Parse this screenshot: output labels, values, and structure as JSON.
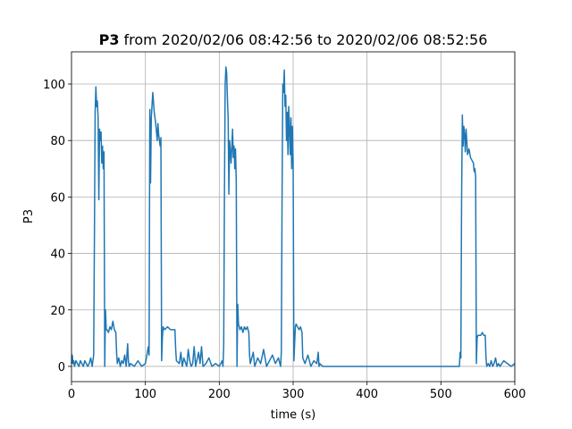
{
  "chart_data": {
    "type": "line",
    "title_parts": [
      "P3",
      "from 2020/02/06 08:42:56 to 2020/02/06 08:52:56"
    ],
    "xlabel": "time (s)",
    "ylabel": "P3",
    "xlim": [
      0,
      600
    ],
    "ylim": [
      -5.4,
      111.4
    ],
    "xticks": [
      0,
      100,
      200,
      300,
      400,
      500,
      600
    ],
    "yticks": [
      0,
      20,
      40,
      60,
      80,
      100
    ],
    "grid": true,
    "x": [
      0,
      1,
      2,
      3,
      4,
      6,
      8,
      10,
      12,
      14,
      16,
      18,
      20,
      22,
      24,
      26,
      28,
      30,
      31,
      32,
      33,
      34,
      35,
      36,
      37,
      38,
      39,
      40,
      41,
      42,
      43,
      44,
      45,
      46,
      47,
      48,
      50,
      52,
      54,
      56,
      58,
      60,
      61,
      62,
      64,
      66,
      68,
      70,
      72,
      74,
      76,
      77,
      78,
      80,
      85,
      90,
      95,
      100,
      104,
      105,
      106,
      107,
      108,
      110,
      112,
      114,
      116,
      117,
      118,
      120,
      121,
      122,
      123,
      124,
      126,
      130,
      134,
      138,
      140,
      141,
      142,
      146,
      148,
      150,
      152,
      156,
      158,
      160,
      162,
      164,
      166,
      168,
      172,
      174,
      176,
      178,
      182,
      186,
      190,
      195,
      200,
      204,
      205,
      206,
      207,
      208,
      209,
      210,
      211,
      212,
      213,
      214,
      216,
      218,
      219,
      220,
      221,
      222,
      223,
      224,
      225,
      226,
      228,
      230,
      232,
      234,
      236,
      238,
      240,
      241,
      242,
      246,
      248,
      252,
      256,
      260,
      264,
      268,
      272,
      276,
      280,
      283,
      284,
      285,
      286,
      287,
      288,
      289,
      290,
      291,
      292,
      293,
      294,
      295,
      296,
      297,
      298,
      299,
      300,
      301,
      302,
      303,
      304,
      306,
      308,
      310,
      312,
      313,
      316,
      320,
      324,
      328,
      332,
      334,
      335,
      336,
      340,
      400,
      500,
      524,
      525,
      526,
      527,
      528,
      529,
      530,
      531,
      532,
      533,
      534,
      535,
      536,
      538,
      540,
      542,
      544,
      545,
      546,
      547,
      548,
      549,
      550,
      552,
      554,
      556,
      558,
      560,
      561,
      562,
      564,
      566,
      568,
      570,
      572,
      574,
      576,
      578,
      580,
      585,
      590,
      595,
      600
    ],
    "series": [
      {
        "name": "P3",
        "color": "#1f77b4",
        "values": [
          1,
          4,
          1,
          2,
          0,
          2,
          1,
          0,
          2,
          1,
          0,
          2,
          1,
          0,
          1,
          3,
          0,
          4,
          45,
          90,
          99,
          92,
          94,
          88,
          59,
          84,
          80,
          83,
          72,
          78,
          70,
          76,
          0,
          20,
          13,
          13,
          12,
          14,
          13,
          16,
          13,
          12,
          5,
          1,
          3,
          0,
          2,
          1,
          4,
          0,
          8,
          2,
          0,
          1,
          0,
          2,
          0,
          1,
          7,
          4,
          91,
          65,
          88,
          97,
          90,
          86,
          80,
          86,
          82,
          78,
          81,
          2,
          10,
          14,
          13,
          14,
          13,
          13,
          13,
          6,
          2,
          1,
          5,
          0,
          3,
          0,
          6,
          2,
          0,
          1,
          7,
          0,
          5,
          1,
          7,
          0,
          1,
          3,
          0,
          1,
          0,
          2,
          0,
          7,
          60,
          100,
          106,
          104,
          95,
          88,
          61,
          80,
          72,
          84,
          74,
          78,
          70,
          77,
          65,
          0,
          22,
          15,
          13,
          14,
          12,
          14,
          13,
          14,
          12,
          4,
          1,
          5,
          0,
          3,
          1,
          6,
          0,
          2,
          4,
          1,
          3,
          0,
          5,
          60,
          100,
          97,
          105,
          92,
          96,
          80,
          90,
          75,
          92,
          84,
          75,
          88,
          70,
          85,
          72,
          2,
          8,
          14,
          15,
          14,
          13,
          14,
          12,
          3,
          1,
          4,
          0,
          2,
          1,
          5,
          0,
          1,
          0,
          0,
          0,
          0,
          0,
          5,
          3,
          60,
          89,
          78,
          85,
          82,
          76,
          84,
          80,
          75,
          77,
          74,
          73,
          72,
          69,
          70,
          67,
          1,
          10,
          11,
          11,
          11,
          12,
          11,
          11,
          3,
          0,
          1,
          0,
          2,
          0,
          1,
          3,
          0,
          1,
          0,
          2,
          1,
          0,
          1
        ]
      }
    ]
  }
}
